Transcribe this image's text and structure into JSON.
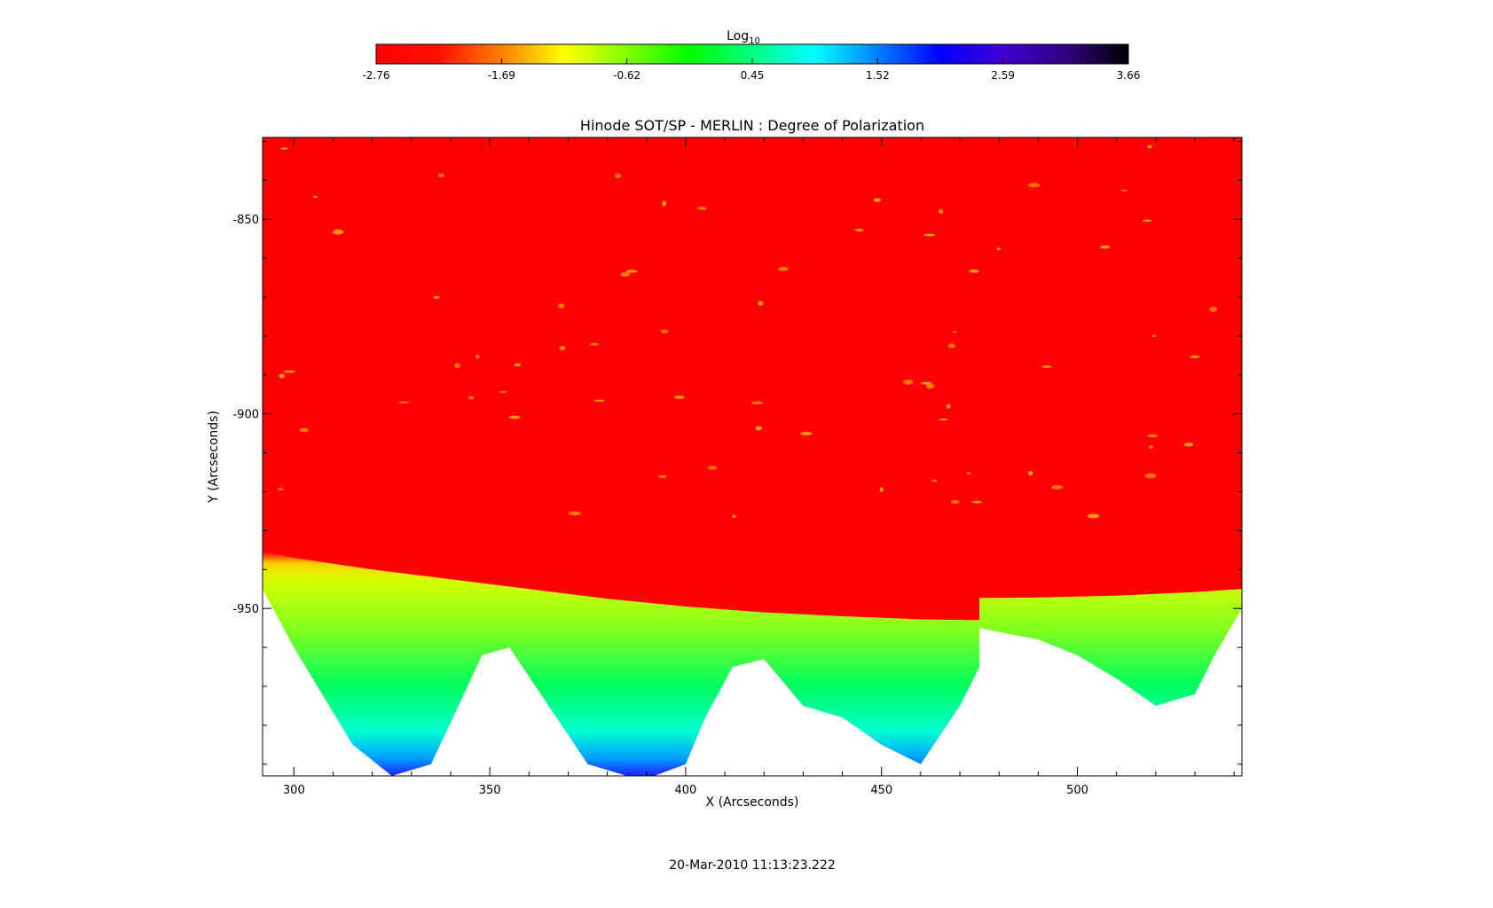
{
  "chart_data": {
    "type": "heatmap",
    "title": "Hinode SOT/SP - MERLIN : Degree of Polarization",
    "xlabel": "X (Arcseconds)",
    "ylabel": "Y (Arcseconds)",
    "xlim": [
      292,
      542
    ],
    "ylim": [
      -993,
      -829
    ],
    "x_ticks": [
      300,
      350,
      400,
      450,
      500
    ],
    "y_ticks": [
      -850,
      -900,
      -950
    ],
    "colorbar": {
      "label": "Log",
      "label_subscript": "10",
      "range": [
        -2.76,
        3.66
      ],
      "ticks": [
        "-2.76",
        "-1.69",
        "-0.62",
        "0.45",
        "1.52",
        "2.59",
        "3.66"
      ],
      "colors": [
        "#ff0000",
        "#ff1000",
        "#ff8000",
        "#ffff00",
        "#80ff00",
        "#00ff00",
        "#00ff80",
        "#00ffff",
        "#0080ff",
        "#0000ff",
        "#4000d0",
        "#300080",
        "#000000"
      ]
    },
    "limb_profile": {
      "x": [
        292,
        300,
        320,
        340,
        360,
        380,
        400,
        420,
        440,
        460,
        475,
        475.01,
        490,
        510,
        530,
        542
      ],
      "y": [
        -935.5,
        -937,
        -940,
        -942.5,
        -945,
        -947.5,
        -949.5,
        -951,
        -952,
        -952.8,
        -953,
        -947.3,
        -947.2,
        -946.7,
        -945.8,
        -945
      ]
    },
    "disk_value_log": -2.76,
    "limb_value_log": -1.2,
    "offlimb_value_log": 0.2,
    "timestamp": "20-Mar-2010 11:13:23.222"
  },
  "colors": {
    "background": "#ffffff",
    "axes": "#000000"
  }
}
